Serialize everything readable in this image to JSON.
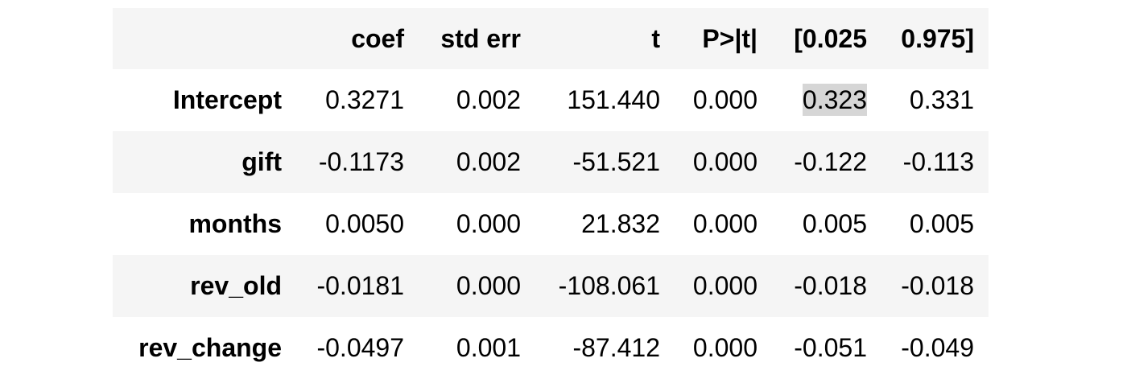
{
  "table": {
    "columns": [
      "",
      "coef",
      "std err",
      "t",
      "P>|t|",
      "[0.025",
      "0.975]"
    ],
    "rows": [
      {
        "label": "Intercept",
        "coef": "0.3271",
        "std_err": "0.002",
        "t": "151.440",
        "p": "0.000",
        "ci_low": "0.323",
        "ci_high": "0.331",
        "ci_low_highlighted": true
      },
      {
        "label": "gift",
        "coef": "-0.1173",
        "std_err": "0.002",
        "t": "-51.521",
        "p": "0.000",
        "ci_low": "-0.122",
        "ci_high": "-0.113"
      },
      {
        "label": "months",
        "coef": "0.0050",
        "std_err": "0.000",
        "t": "21.832",
        "p": "0.000",
        "ci_low": "0.005",
        "ci_high": "0.005"
      },
      {
        "label": "rev_old",
        "coef": "-0.0181",
        "std_err": "0.000",
        "t": "-108.061",
        "p": "0.000",
        "ci_low": "-0.018",
        "ci_high": "-0.018"
      },
      {
        "label": "rev_change",
        "coef": "-0.0497",
        "std_err": "0.001",
        "t": "-87.412",
        "p": "0.000",
        "ci_low": "-0.051",
        "ci_high": "-0.049"
      }
    ]
  },
  "colors": {
    "row_shade": "#f5f5f5",
    "highlight": "#d6d6d6"
  }
}
